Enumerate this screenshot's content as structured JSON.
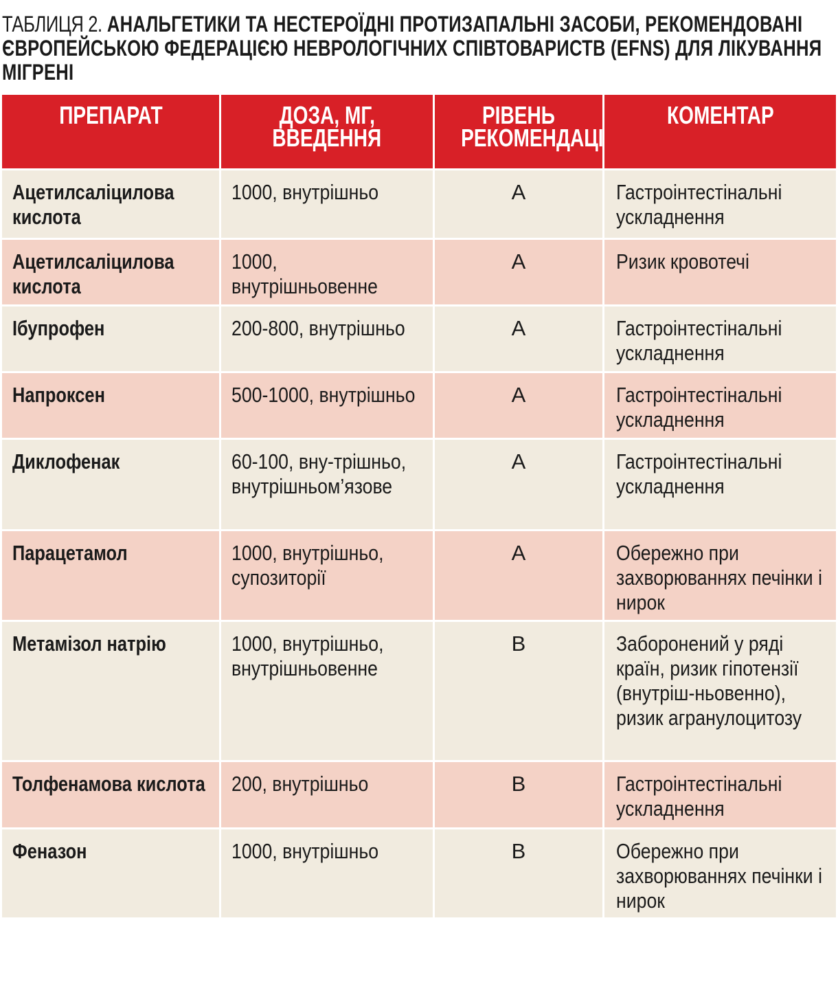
{
  "caption": {
    "lead": "ТАБЛИЦЯ 2.",
    "title": "АНАЛЬГЕТИКИ ТА НЕСТЕРОЇДНІ ПРОТИЗАПАЛЬНІ ЗАСОБИ, РЕКОМЕНДОВАНІ ЄВРОПЕЙСЬКОЮ ФЕДЕРАЦІЄЮ НЕВРОЛОГІЧНИХ СПІВТОВАРИСТВ (EFNS) ДЛЯ ЛІКУВАННЯ МІГРЕНІ"
  },
  "headers": {
    "drug": "ПРЕПАРАТ",
    "dose_1": "ДОЗА, МГ,",
    "dose_2": "ВВЕДЕННЯ",
    "level_1": "РІВЕНЬ",
    "level_2": "РЕКОМЕНДАЦІЙ",
    "comment": "КОМЕНТАР"
  },
  "rows": [
    {
      "drug": "Ацетилсаліцилова кислота",
      "dose": "1000, внутрішньо",
      "level": "A",
      "comment": "Гастроінтестінальні ускладнення"
    },
    {
      "drug": "Ацетилсаліцилова кислота",
      "dose": "1000, внутрішньовенне",
      "level": "A",
      "comment": "Ризик кровотечі"
    },
    {
      "drug": "Ібупрофен",
      "dose": "200-800, внутрішньо",
      "level": "A",
      "comment": "Гастроінтестінальні ускладнення"
    },
    {
      "drug": "Напроксен",
      "dose": "500-1000, внутрішньо",
      "level": "A",
      "comment": "Гастроінтестінальні ускладнення"
    },
    {
      "drug": "Диклофенак",
      "dose": "60-100, вну-трішньо, внутрішньом’язове",
      "level": "A",
      "comment": "Гастроінтестінальні ускладнення"
    },
    {
      "drug": "Парацетамол",
      "dose": "1000, внутрішньо, супозиторії",
      "level": "A",
      "comment": "Обережно при захворюваннях печінки і нирок"
    },
    {
      "drug": "Метамізол натрію",
      "dose": "1000, внутрішньо, внутрішньовенне",
      "level": "B",
      "comment": "Заборонений у ряді країн, ризик гіпотензії (внутріш-ньовенно), ризик агранулоцитозу"
    },
    {
      "drug": "Толфенамова кислота",
      "dose": "200, внутрішньо",
      "level": "B",
      "comment": "Гастроінтестінальні ускладнення"
    },
    {
      "drug": "Феназон",
      "dose": "1000, внутрішньо",
      "level": "B",
      "comment": "Обережно при захворюваннях печінки і нирок"
    }
  ],
  "colors": {
    "header_bg": "#d82027",
    "row_odd_bg": "#f1ebdf",
    "row_even_bg": "#f4d2c6"
  }
}
